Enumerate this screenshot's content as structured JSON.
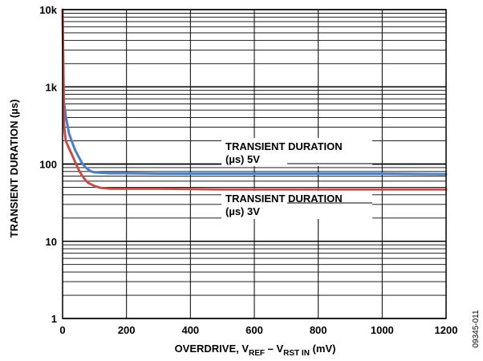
{
  "chart_data": {
    "type": "line",
    "xlabel": {
      "main": "OVERDRIVE, V",
      "sub1": "REF",
      "mid": " – V",
      "sub2": "RST IN",
      "tail": " (mV)"
    },
    "ylabel": "TRANSIENT DURATION (µs)",
    "y_scale": "log",
    "xlim": [
      0,
      1200
    ],
    "ylim": [
      1,
      10000
    ],
    "x_ticks": [
      0,
      200,
      400,
      600,
      800,
      1000,
      1200
    ],
    "x_tick_labels": [
      "0",
      "200",
      "400",
      "600",
      "800",
      "1000",
      "1200"
    ],
    "y_ticks": [
      1,
      10,
      100,
      1000,
      10000
    ],
    "y_tick_labels": [
      "1",
      "10",
      "100",
      "1k",
      "10k"
    ],
    "grid": true,
    "series": [
      {
        "name": "TRANSIENT DURATION (µs) 5V",
        "label_lines": [
          "TRANSIENT DURATION",
          "(µs) 5V"
        ],
        "color": "#4a7fc1",
        "x": [
          5,
          10,
          20,
          30,
          40,
          50,
          60,
          70,
          80,
          90,
          100,
          120,
          150,
          200,
          300,
          500,
          800,
          1000,
          1200
        ],
        "y": [
          600,
          420,
          250,
          190,
          150,
          125,
          105,
          92,
          85,
          80,
          78,
          77,
          76,
          76,
          75,
          75,
          75,
          75,
          74
        ]
      },
      {
        "name": "TRANSIENT DURATION (µs) 3V",
        "label_lines": [
          "TRANSIENT DURATION",
          "(µs) 3V"
        ],
        "color": "#c0504d",
        "x": [
          0,
          5,
          10,
          20,
          30,
          40,
          50,
          60,
          70,
          80,
          100,
          120,
          150,
          200,
          300,
          500,
          800,
          1000,
          1200
        ],
        "y": [
          10000,
          300,
          200,
          160,
          130,
          105,
          85,
          72,
          63,
          57,
          52,
          49,
          48,
          48,
          48,
          47,
          47,
          47,
          47
        ]
      }
    ]
  },
  "figure_id": "09345-011"
}
